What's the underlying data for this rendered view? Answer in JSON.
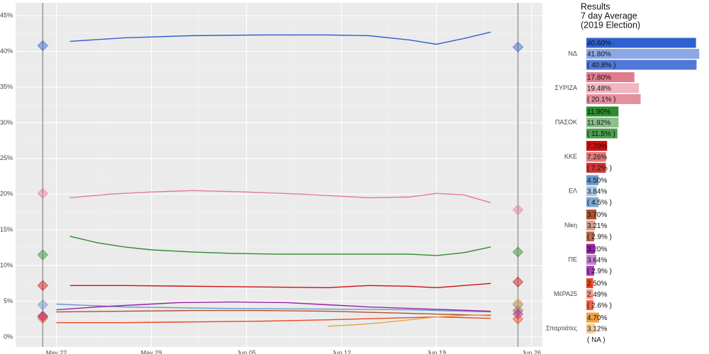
{
  "chart_data": [
    {
      "type": "line",
      "xticks": [
        {
          "value": 0,
          "label": "May 22"
        },
        {
          "value": 7,
          "label": "May 29"
        },
        {
          "value": 14,
          "label": "Jun 05"
        },
        {
          "value": 21,
          "label": "Jun 12"
        },
        {
          "value": 28,
          "label": "Jun 19"
        },
        {
          "value": 35,
          "label": "Jun 26"
        }
      ],
      "xlim": [
        -3,
        35.8
      ],
      "ylim": [
        -1.4,
        46.8
      ],
      "yticks": [
        {
          "value": 0,
          "label": "0%"
        },
        {
          "value": 5,
          "label": "5%"
        },
        {
          "value": 10,
          "label": "10%"
        },
        {
          "value": 15,
          "label": "15%"
        },
        {
          "value": 20,
          "label": "20%"
        },
        {
          "value": 25,
          "label": "25%"
        },
        {
          "value": 30,
          "label": "30%"
        },
        {
          "value": 35,
          "label": "35%"
        },
        {
          "value": 40,
          "label": "40%"
        },
        {
          "value": 45,
          "label": "45%"
        }
      ],
      "grid": true,
      "vlines": [
        -1,
        34
      ],
      "series": [
        {
          "name": "ΝΔ",
          "color": "#3060d0",
          "x": [
            1,
            5,
            10,
            15,
            20,
            23,
            26,
            28,
            30,
            32
          ],
          "values": [
            41.4,
            41.9,
            42.2,
            42.3,
            42.3,
            42.2,
            41.6,
            41.0,
            41.8,
            42.7
          ]
        },
        {
          "name": "ΣΥΡΙΖΑ",
          "color": "#e07c8e",
          "x": [
            1,
            4,
            7,
            10,
            14,
            18,
            23,
            26,
            28,
            30,
            32
          ],
          "values": [
            19.5,
            20.0,
            20.3,
            20.5,
            20.3,
            20.0,
            19.5,
            19.6,
            20.1,
            19.9,
            18.8
          ]
        },
        {
          "name": "ΠΑΣΟΚ",
          "color": "#2e8b2e",
          "x": [
            1,
            3,
            5,
            7,
            10,
            13,
            16,
            20,
            23,
            26,
            28,
            30,
            32
          ],
          "values": [
            14.1,
            13.2,
            12.6,
            12.2,
            11.9,
            11.7,
            11.6,
            11.6,
            11.6,
            11.6,
            11.4,
            11.8,
            12.6
          ]
        },
        {
          "name": "ΚΚΕ",
          "color": "#cc1111",
          "x": [
            1,
            5,
            10,
            15,
            20,
            23,
            26,
            28,
            30,
            32
          ],
          "values": [
            7.2,
            7.2,
            7.1,
            7.0,
            6.9,
            7.2,
            7.1,
            6.9,
            7.2,
            7.5
          ]
        },
        {
          "name": "ΕΛ",
          "color": "#6699cc",
          "x": [
            0,
            5,
            12,
            20,
            26,
            32
          ],
          "values": [
            4.6,
            4.2,
            4.0,
            3.9,
            3.8,
            3.5
          ]
        },
        {
          "name": "Νίκη",
          "color": "#b0522c",
          "x": [
            0,
            5,
            10,
            15,
            20,
            26,
            32
          ],
          "values": [
            3.5,
            3.6,
            3.7,
            3.7,
            3.6,
            3.3,
            3.0
          ]
        },
        {
          "name": "ΠΕ",
          "color": "#9a1fa8",
          "x": [
            0,
            3,
            6,
            9,
            13,
            17,
            20,
            23,
            26,
            29,
            32
          ],
          "values": [
            3.8,
            4.2,
            4.5,
            4.8,
            4.9,
            4.8,
            4.5,
            4.2,
            4.0,
            3.8,
            3.6
          ]
        },
        {
          "name": "ΜέΡΑ25",
          "color": "#ee4422",
          "x": [
            0,
            5,
            10,
            15,
            20,
            24,
            28,
            32
          ],
          "values": [
            2.0,
            2.0,
            2.1,
            2.2,
            2.4,
            2.6,
            2.8,
            2.6
          ]
        },
        {
          "name": "Σπαρτιάτες",
          "color": "#f0a040",
          "x": [
            20,
            22,
            24,
            26,
            28,
            30,
            32
          ],
          "values": [
            1.5,
            1.7,
            2.0,
            2.4,
            2.8,
            3.0,
            3.1
          ]
        }
      ]
    },
    {
      "type": "hbar",
      "title": [
        "Results",
        "7 day Average",
        "(2019 Election)"
      ],
      "categories": [
        "ΝΔ",
        "ΣΥΡΙΖΑ",
        "ΠΑΣΟΚ",
        "ΚΚΕ",
        "ΕΛ",
        "Νίκη",
        "ΠΕ",
        "ΜέΡΑ25",
        "Σπαρτιάτες"
      ],
      "colors": [
        "#3060d0",
        "#e07c8e",
        "#2e8b2e",
        "#cc1111",
        "#6699cc",
        "#b0522c",
        "#9a1fa8",
        "#ee4422",
        "#f0a040"
      ],
      "xlim": [
        0,
        42
      ],
      "series": [
        {
          "values": [
            40.6,
            17.8,
            11.9,
            7.7,
            4.5,
            3.7,
            3.2,
            2.5,
            4.7
          ],
          "value_labels": [
            "40.60%",
            "17.80%",
            "11.90%",
            "7.70%",
            "4.50%",
            "3.70%",
            "3.20%",
            "2.50%",
            "4.70%"
          ]
        },
        {
          "values": [
            41.8,
            19.48,
            11.92,
            7.26,
            3.84,
            3.21,
            3.64,
            2.49,
            3.12
          ],
          "value_labels": [
            "41.80%",
            "19.48%",
            "11.92%",
            "7.26%",
            "3.84%",
            "3.21%",
            "3.64%",
            "2.49%",
            "3.12%"
          ]
        },
        {
          "values": [
            40.8,
            20.1,
            11.5,
            7.2,
            4.5,
            2.9,
            2.9,
            2.6,
            null
          ],
          "value_labels": [
            "( 40.8% )",
            "( 20.1% )",
            "( 11.5% )",
            "( 7.2% )",
            "( 4.5% )",
            "( 2.9% )",
            "( 2.9% )",
            "( 2.6% )",
            "( NA )"
          ]
        }
      ]
    }
  ]
}
